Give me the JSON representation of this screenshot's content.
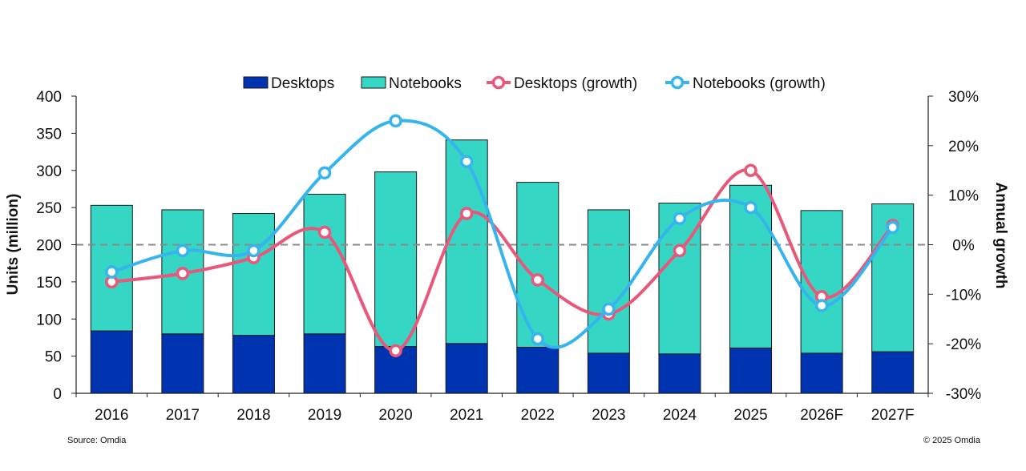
{
  "chart_data": {
    "type": "bar",
    "stacked": true,
    "categories": [
      "2016",
      "2017",
      "2018",
      "2019",
      "2020",
      "2021",
      "2022",
      "2023",
      "2024",
      "2025",
      "2026F",
      "2027F"
    ],
    "series": [
      {
        "name": "Desktops",
        "kind": "bar",
        "axis": "left",
        "color": "#0033b0",
        "values": [
          84,
          80,
          78,
          80,
          63,
          67,
          62,
          54,
          53,
          61,
          54,
          56
        ]
      },
      {
        "name": "Notebooks",
        "kind": "bar",
        "axis": "left",
        "color": "#36d6c4",
        "values": [
          169,
          167,
          164,
          188,
          235,
          274,
          222,
          193,
          203,
          219,
          192,
          199
        ]
      },
      {
        "name": "Desktops (growth)",
        "kind": "line",
        "axis": "right",
        "color": "#e8587a",
        "values": [
          -7.5,
          -5.8,
          -2.6,
          2.5,
          -21.4,
          6.3,
          -7.1,
          -14.0,
          -1.2,
          15.0,
          -10.5,
          3.9
        ]
      },
      {
        "name": "Notebooks (growth)",
        "kind": "line",
        "axis": "right",
        "color": "#35b4ee",
        "values": [
          -5.5,
          -1.2,
          -1.2,
          14.5,
          25.0,
          16.8,
          -19.0,
          -13.0,
          5.3,
          7.5,
          -12.3,
          3.5
        ]
      }
    ],
    "ylabel": "Units (million)",
    "ylim": [
      0,
      400
    ],
    "yticks": [
      "0",
      "50",
      "100",
      "150",
      "200",
      "250",
      "300",
      "350",
      "400"
    ],
    "y2label": "Annual growth",
    "y2lim": [
      -30,
      30
    ],
    "y2ticks": [
      "-30%",
      "-20%",
      "-10%",
      "0%",
      "10%",
      "20%",
      "30%"
    ],
    "zero_line": "dashed",
    "legend": "top-center",
    "grid": false
  },
  "footer": {
    "source": "Source: Omdia",
    "copyright": "© 2025 Omdia"
  }
}
